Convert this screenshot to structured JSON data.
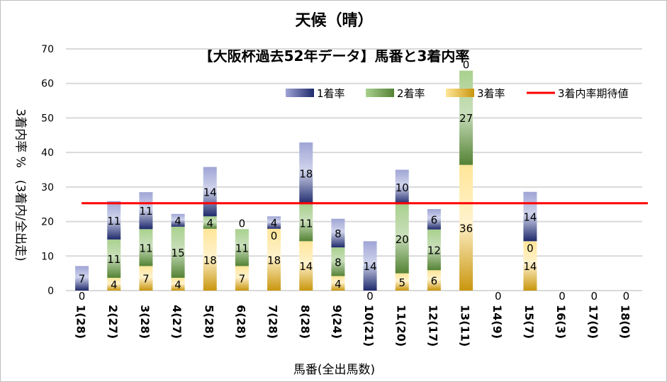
{
  "chart_data": {
    "type": "bar",
    "stacked": true,
    "title": "天候（晴）",
    "subtitle": "【大阪杯過去52年データ】馬番と3着内率",
    "xlabel": "馬番(全出馬数)",
    "ylabel": "3着内率 %　(3着内/全出走)",
    "ylim": [
      0,
      70
    ],
    "yticks": [
      0,
      10,
      20,
      30,
      40,
      50,
      60,
      70
    ],
    "grid": true,
    "legend": "top-right",
    "categories": [
      "1(28)",
      "2(27)",
      "3(28)",
      "4(27)",
      "5(28)",
      "6(28)",
      "7(28)",
      "8(28)",
      "9(24)",
      "10(21)",
      "11(20)",
      "12(17)",
      "13(11)",
      "14(9)",
      "15(7)",
      "16(3)",
      "17(0)",
      "18(0)"
    ],
    "series": [
      {
        "name": "3着率",
        "color": "#c9960e",
        "values": [
          0,
          3.7,
          7.1,
          3.7,
          17.9,
          7.1,
          17.9,
          14.3,
          4.2,
          0,
          5,
          5.9,
          36.4,
          0,
          14.3,
          0,
          0,
          0
        ],
        "labels": [
          "0",
          "4",
          "7",
          "4",
          "18",
          "7",
          "18",
          "14",
          "4",
          "0",
          "5",
          "6",
          "36",
          "0",
          "14",
          "0",
          "0",
          "0"
        ]
      },
      {
        "name": "2着率",
        "color": "#548235",
        "values": [
          0,
          11.1,
          10.7,
          14.8,
          3.6,
          10.7,
          0,
          10.7,
          8.3,
          0,
          20,
          11.8,
          27.3,
          0,
          0,
          0,
          0,
          0
        ],
        "labels": [
          "",
          "11",
          "11",
          "15",
          "4",
          "11",
          "0",
          "11",
          "8",
          "",
          "20",
          "12",
          "27",
          "",
          "0",
          "",
          "",
          ""
        ]
      },
      {
        "name": "1着率",
        "color": "#1f2a6b",
        "values": [
          7.1,
          11.1,
          10.7,
          3.7,
          14.3,
          0,
          3.6,
          17.9,
          8.3,
          14.3,
          10,
          5.9,
          0,
          0,
          14.3,
          0,
          0,
          0
        ],
        "labels": [
          "7",
          "11",
          "11",
          "4",
          "14",
          "0",
          "4",
          "18",
          "8",
          "14",
          "10",
          "6",
          "0",
          "",
          "14",
          "",
          "",
          ""
        ]
      }
    ],
    "reference_line": {
      "name": "3着内率期待値",
      "value": 25.3,
      "color": "#ff0000"
    }
  }
}
